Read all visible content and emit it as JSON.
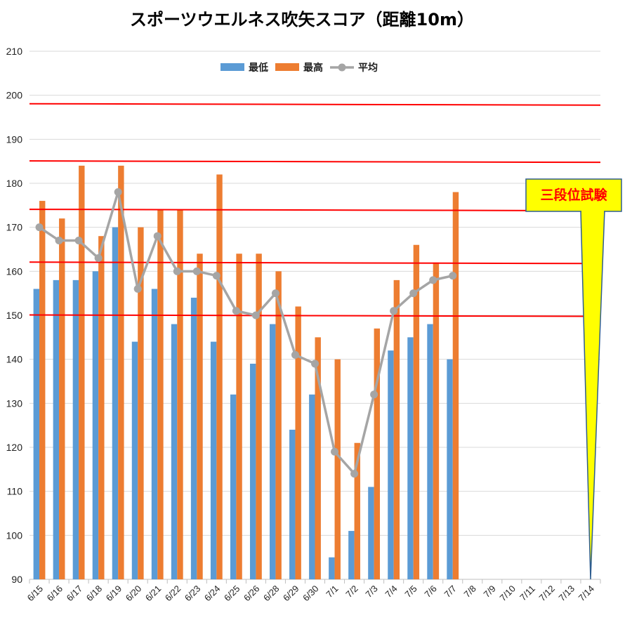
{
  "chart_data": {
    "type": "bar",
    "title": "スポーツウエルネス吹矢スコア（距離10m）",
    "xlabel": "",
    "ylabel": "",
    "ylim": [
      90,
      210
    ],
    "yticks": [
      90,
      100,
      110,
      120,
      130,
      140,
      150,
      160,
      170,
      180,
      190,
      200,
      210
    ],
    "grid": true,
    "legend_position": "top-center",
    "categories": [
      "6/15",
      "6/16",
      "6/17",
      "6/18",
      "6/19",
      "6/20",
      "6/21",
      "6/22",
      "6/23",
      "6/24",
      "6/25",
      "6/26",
      "6/28",
      "6/29",
      "6/30",
      "7/1",
      "7/2",
      "7/3",
      "7/4",
      "7/5",
      "7/6",
      "7/7",
      "7/8",
      "7/9",
      "7/10",
      "7/11",
      "7/12",
      "7/13",
      "7/14"
    ],
    "series": [
      {
        "name": "最低",
        "kind": "bar",
        "color": "#5b9bd5",
        "values": [
          156,
          158,
          158,
          160,
          170,
          144,
          156,
          148,
          154,
          144,
          132,
          139,
          148,
          124,
          132,
          95,
          101,
          111,
          142,
          145,
          148,
          140,
          null,
          null,
          null,
          null,
          null,
          null,
          null
        ]
      },
      {
        "name": "最高",
        "kind": "bar",
        "color": "#ed7d31",
        "values": [
          176,
          172,
          184,
          168,
          184,
          170,
          174,
          174,
          164,
          182,
          164,
          164,
          160,
          152,
          145,
          140,
          121,
          147,
          158,
          166,
          162,
          178,
          null,
          null,
          null,
          null,
          null,
          null,
          null
        ]
      },
      {
        "name": "平均",
        "kind": "line",
        "color": "#a5a5a5",
        "values": [
          170,
          167,
          167,
          163,
          178,
          156,
          168,
          160,
          160,
          159,
          151,
          150,
          155,
          141,
          139,
          119,
          114,
          132,
          151,
          155,
          158,
          159,
          null,
          null,
          null,
          null,
          null,
          null,
          null
        ]
      }
    ],
    "reference_lines": {
      "color": "#ff0000",
      "values": [
        150,
        162,
        174,
        185,
        198
      ]
    },
    "annotation": {
      "text": "三段位試験",
      "target_category": "7/14",
      "target_value": 90,
      "box_color": "#ffff00",
      "border_color": "#2e5d8f",
      "text_color": "#ff0000"
    }
  }
}
